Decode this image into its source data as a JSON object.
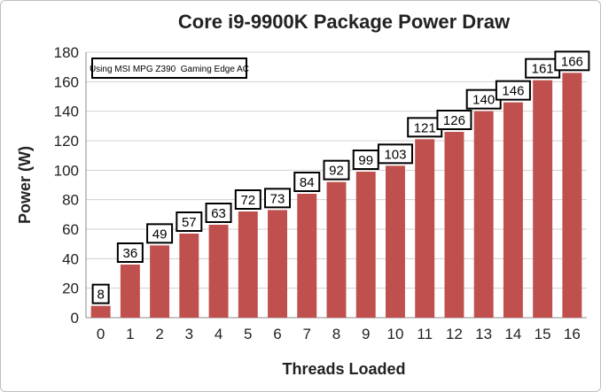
{
  "chart_data": {
    "type": "bar",
    "title": "Core i9-9900K Package Power Draw",
    "annotation": "Using MSI MPG Z390  Gaming Edge AC",
    "xlabel": "Threads Loaded",
    "ylabel": "Power (W)",
    "categories": [
      "0",
      "1",
      "2",
      "3",
      "4",
      "5",
      "6",
      "7",
      "8",
      "9",
      "10",
      "11",
      "12",
      "13",
      "14",
      "15",
      "16"
    ],
    "values": [
      8,
      36,
      49,
      57,
      63,
      72,
      73,
      84,
      92,
      99,
      103,
      121,
      126,
      140,
      146,
      161,
      166
    ],
    "ylim": [
      0,
      180
    ],
    "yticks": [
      0,
      20,
      40,
      60,
      80,
      100,
      120,
      140,
      160,
      180
    ],
    "grid": true,
    "legend": "none",
    "colors": {
      "bar": "#c0504d",
      "grid": "#d0d0d0"
    }
  }
}
